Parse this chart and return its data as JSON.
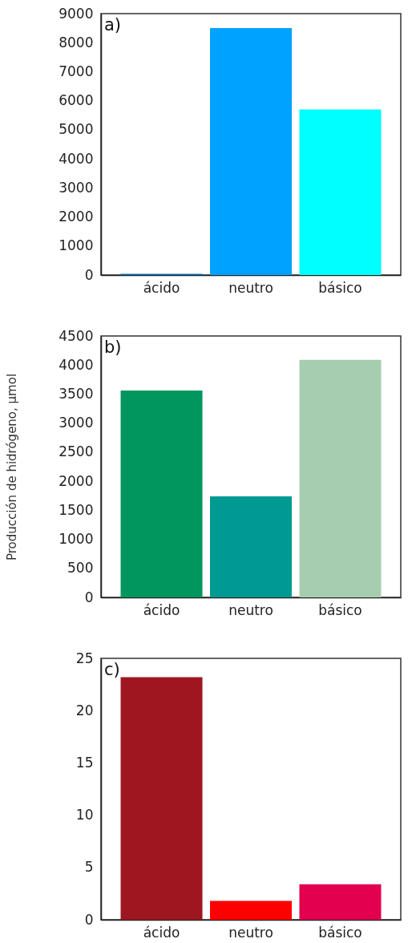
{
  "chart_data": [
    {
      "type": "bar",
      "title": "a)",
      "categories": [
        "ácido",
        "neutro",
        "básico"
      ],
      "values": [
        40,
        8500,
        5700
      ],
      "colors": [
        "#0070c0",
        "#00a2ff",
        "#00ffff"
      ],
      "ylim": [
        0,
        9000
      ],
      "yticks": [
        0,
        1000,
        2000,
        3000,
        4000,
        5000,
        6000,
        7000,
        8000,
        9000
      ]
    },
    {
      "type": "bar",
      "title": "b)",
      "ylabel": "Producción de hidrógeno, µmol",
      "categories": [
        "ácido",
        "neutro",
        "básico"
      ],
      "values": [
        3560,
        1740,
        4090
      ],
      "colors": [
        "#00965e",
        "#009a93",
        "#a6cdb0"
      ],
      "ylim": [
        0,
        4500
      ],
      "yticks": [
        0,
        500,
        1000,
        1500,
        2000,
        2500,
        3000,
        3500,
        4000,
        4500
      ]
    },
    {
      "type": "bar",
      "title": "c)",
      "categories": [
        "ácido",
        "neutro",
        "básico"
      ],
      "values": [
        23.2,
        1.8,
        3.4
      ],
      "colors": [
        "#9e1720",
        "#ff0000",
        "#e2004f"
      ],
      "ylim": [
        0,
        25
      ],
      "yticks": [
        0,
        5,
        10,
        15,
        20,
        25
      ]
    }
  ]
}
